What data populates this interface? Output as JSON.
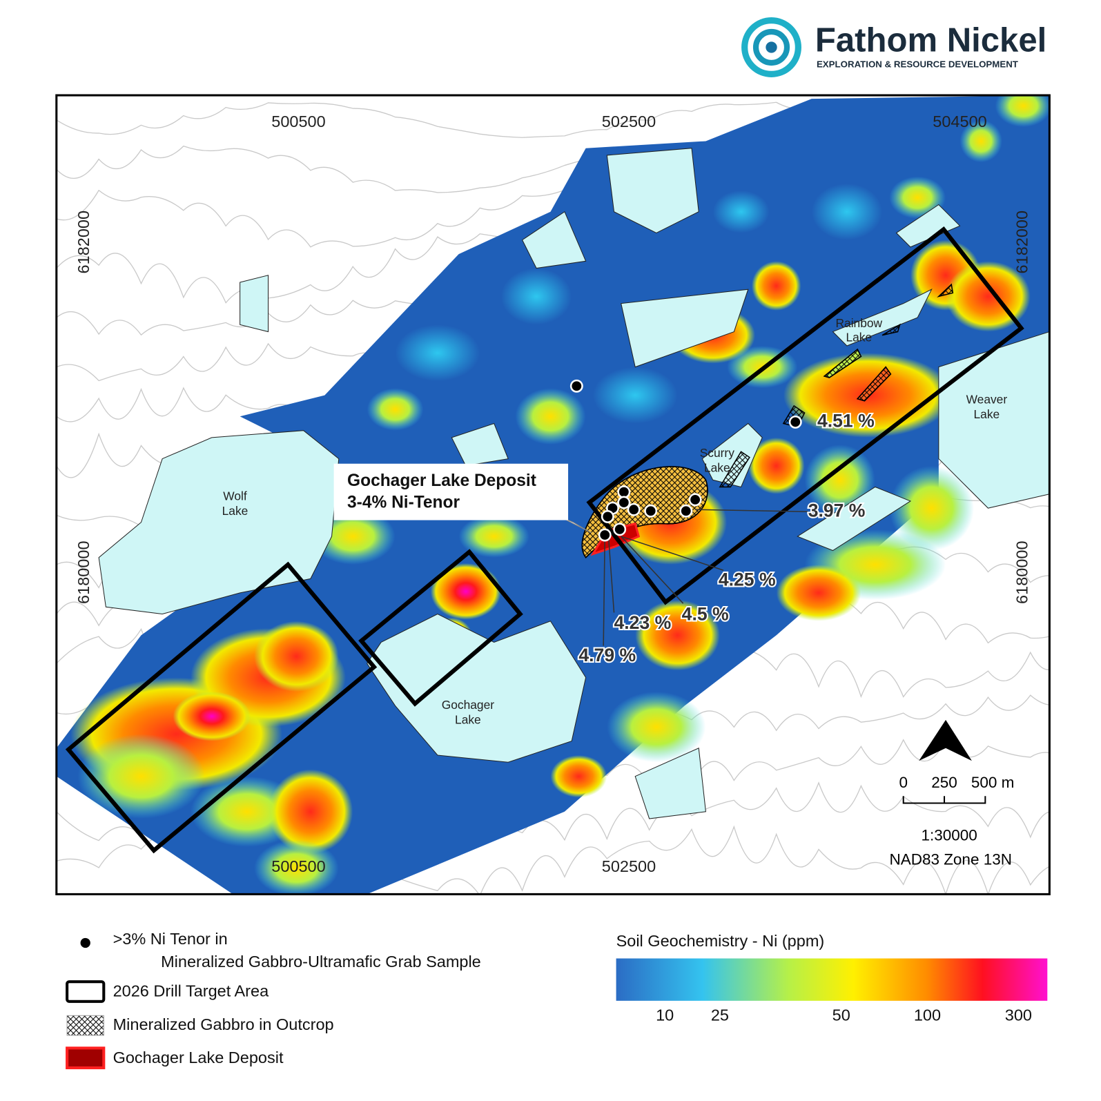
{
  "header": {
    "title": "Fathom Nickel",
    "subtitle": "EXPLORATION & RESOURCE DEVELOPMENT"
  },
  "map": {
    "grid_labels": {
      "top": [
        "500500",
        "502500",
        "504500"
      ],
      "bottom": [
        "500500",
        "502500"
      ],
      "left": [
        "6182000",
        "6180000"
      ],
      "right": [
        "6182000",
        "6180000"
      ]
    },
    "lakes": [
      [
        "Rainbow",
        "Lake"
      ],
      [
        "Weaver",
        "Lake"
      ],
      [
        "Scurry",
        "Lake"
      ],
      [
        "Wolf",
        "Lake"
      ],
      [
        "Gochager",
        "Lake"
      ]
    ],
    "callout": [
      "Gochager Lake Deposit",
      "3-4% Ni-Tenor"
    ],
    "assays": [
      "4.51 %",
      "3.97 %",
      "4.25 %",
      "4.5 %",
      "4.23 %",
      "4.79 %"
    ],
    "scale": {
      "labels": [
        "0",
        "250",
        "500 m"
      ],
      "ratio": "1:30000",
      "datum": "NAD83 Zone 13N"
    }
  },
  "legend": {
    "grab_sample": [
      ">3% Ni Tenor in",
      "Mineralized Gabbro-Ultramafic Grab Sample"
    ],
    "drill_target": "2026 Drill Target Area",
    "outcrop": "Mineralized Gabbro in Outcrop",
    "deposit": "Gochager Lake Deposit"
  },
  "colorbar": {
    "title": "Soil Geochemistry - Ni (ppm)",
    "ticks": [
      "10",
      "25",
      "50",
      "100",
      "300"
    ]
  }
}
